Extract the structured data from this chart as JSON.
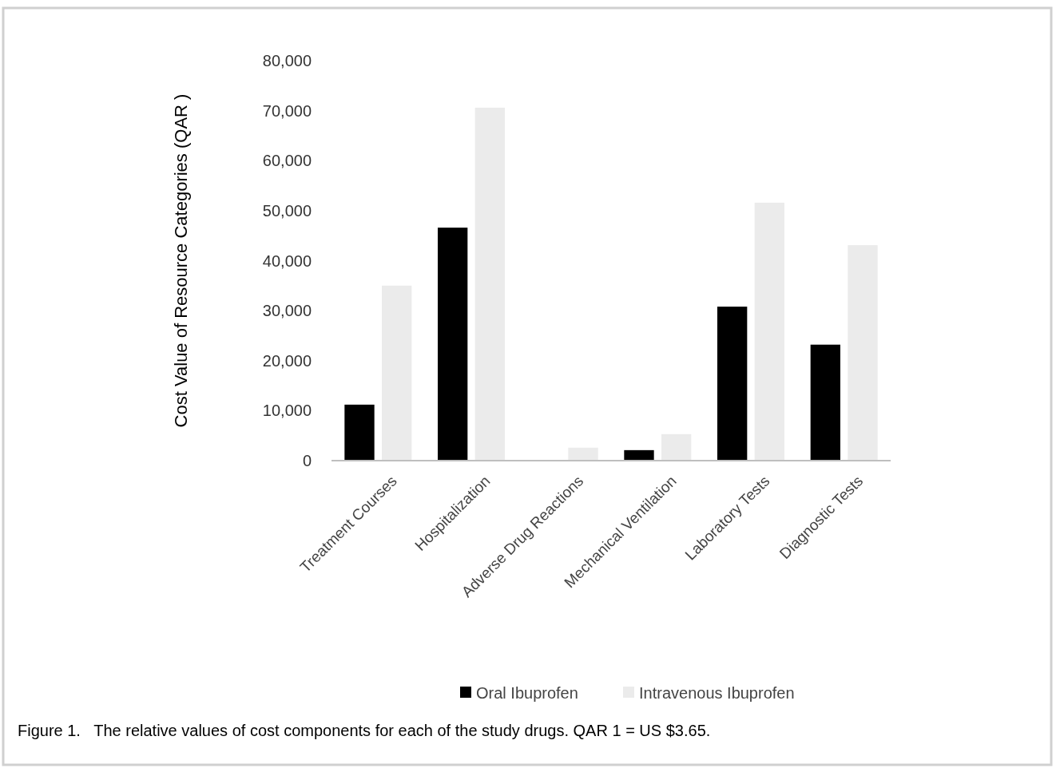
{
  "chart_data": {
    "type": "bar",
    "ylabel": "Cost Value of Resource Categories (QAR )",
    "categories": [
      "Treatment Courses",
      "Hospitalization",
      "Adverse Drug Reactions",
      "Mechanical Ventilation",
      "Laboratory Tests",
      "Diagnostic Tests"
    ],
    "series": [
      {
        "name": "Oral Ibuprofen",
        "color": "#000000",
        "values": [
          11200,
          46600,
          0,
          2100,
          30800,
          23200
        ]
      },
      {
        "name": "Intravenous Ibuprofen",
        "color": "#ebebeb",
        "values": [
          35000,
          70600,
          2600,
          5300,
          51600,
          43100
        ]
      }
    ],
    "ylim": [
      0,
      80000
    ],
    "yticks": [
      {
        "value": 0,
        "label": "0"
      },
      {
        "value": 10000,
        "label": "10,000"
      },
      {
        "value": 20000,
        "label": "20,000"
      },
      {
        "value": 30000,
        "label": "30,000"
      },
      {
        "value": 40000,
        "label": "40,000"
      },
      {
        "value": 50000,
        "label": "50,000"
      },
      {
        "value": 60000,
        "label": "60,000"
      },
      {
        "value": 70000,
        "label": "70,000"
      },
      {
        "value": 80000,
        "label": "80,000"
      }
    ],
    "grid": false,
    "legend": "bottom",
    "annotations": [
      "Figure 1.   The relative values of cost components for each of the study drugs. QAR 1 = US $3.65."
    ]
  }
}
